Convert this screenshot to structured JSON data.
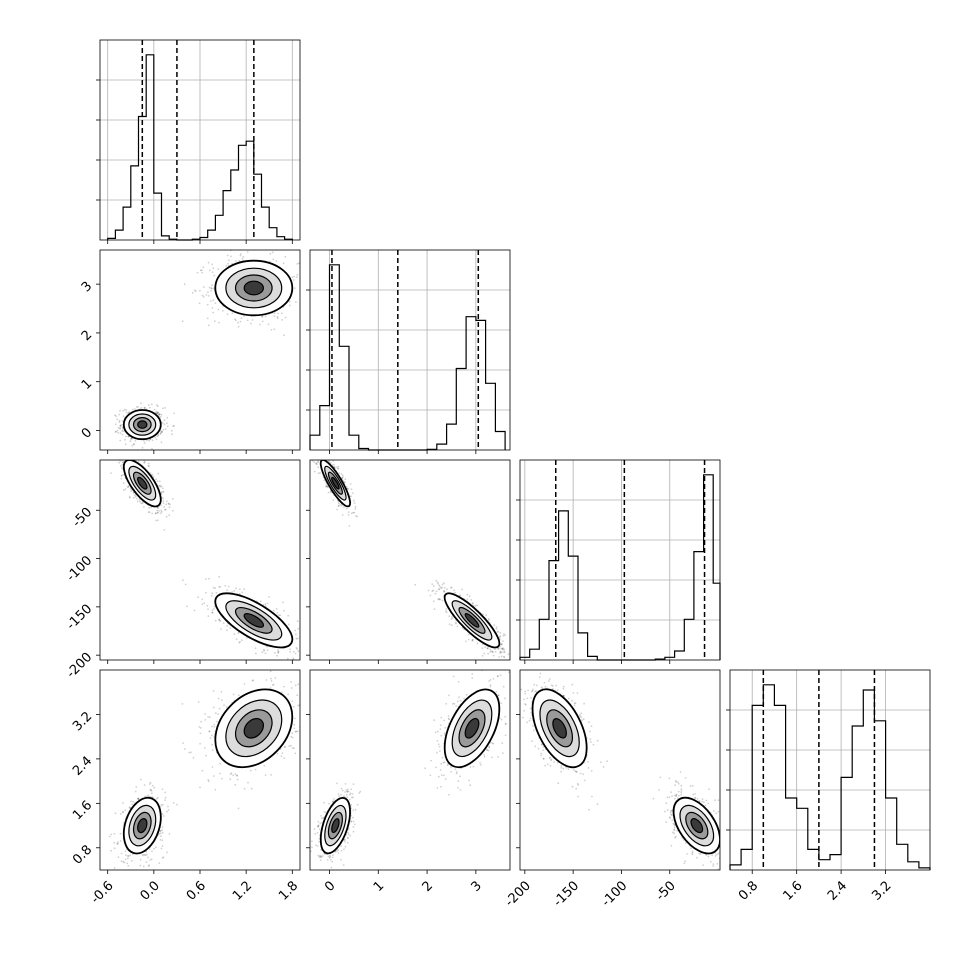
{
  "chart_data": {
    "type": "corner",
    "parameters": [
      {
        "range": [
          -0.7,
          1.9
        ],
        "ticks": [
          "-0.6",
          "0.0",
          "0.6",
          "1.2",
          "1.8"
        ],
        "tick_values": [
          -0.6,
          0.0,
          0.6,
          1.2,
          1.8
        ],
        "quantiles": [
          -0.15,
          0.3,
          1.3
        ],
        "hist_bin_edges": [
          -0.6,
          -0.5,
          -0.4,
          -0.3,
          -0.2,
          -0.1,
          0.0,
          0.1,
          0.2,
          0.3,
          0.4,
          0.5,
          0.6,
          0.7,
          0.8,
          0.9,
          1.0,
          1.1,
          1.2,
          1.3,
          1.4,
          1.5,
          1.6,
          1.7,
          1.8
        ],
        "hist_counts": [
          2,
          12,
          40,
          90,
          150,
          225,
          57,
          5,
          1,
          0,
          0,
          1,
          3,
          12,
          30,
          60,
          85,
          115,
          120,
          80,
          40,
          15,
          4,
          1
        ]
      },
      {
        "range": [
          -0.4,
          3.7
        ],
        "ticks": [
          "0",
          "1",
          "2",
          "3"
        ],
        "tick_values": [
          0,
          1,
          2,
          3
        ],
        "quantiles": [
          0.05,
          1.4,
          3.05
        ],
        "hist_bin_edges": [
          -0.4,
          -0.2,
          0.0,
          0.2,
          0.4,
          0.6,
          0.8,
          1.0,
          1.2,
          1.4,
          1.6,
          1.8,
          2.0,
          2.2,
          2.4,
          2.6,
          2.8,
          3.0,
          3.2,
          3.4,
          3.6
        ],
        "hist_counts": [
          20,
          60,
          250,
          140,
          20,
          2,
          0,
          0,
          0,
          0,
          0,
          0,
          1,
          8,
          35,
          110,
          180,
          175,
          90,
          25
        ]
      },
      {
        "range": [
          -205,
          2
        ],
        "ticks": [
          "-200",
          "-150",
          "-100",
          "-50"
        ],
        "tick_values": [
          -200,
          -150,
          -100,
          -50
        ],
        "quantiles": [
          -168,
          -97,
          -14
        ],
        "hist_bin_edges": [
          -205,
          -195,
          -185,
          -175,
          -165,
          -155,
          -145,
          -135,
          -125,
          -115,
          -105,
          -95,
          -85,
          -75,
          -65,
          -55,
          -45,
          -35,
          -25,
          -15,
          -5,
          2
        ],
        "hist_counts": [
          3,
          12,
          45,
          110,
          165,
          115,
          30,
          4,
          0,
          0,
          0,
          0,
          0,
          0,
          1,
          3,
          10,
          45,
          120,
          205,
          85
        ]
      },
      {
        "range": [
          0.4,
          4.0
        ],
        "ticks": [
          "0.8",
          "1.6",
          "2.4",
          "3.2"
        ],
        "tick_values": [
          0.8,
          1.6,
          2.4,
          3.2
        ],
        "quantiles": [
          1.0,
          2.0,
          3.0
        ],
        "hist_bin_edges": [
          0.4,
          0.6,
          0.8,
          1.0,
          1.2,
          1.4,
          1.6,
          1.8,
          2.0,
          2.2,
          2.4,
          2.6,
          2.8,
          3.0,
          3.2,
          3.4,
          3.6,
          3.8,
          4.0
        ],
        "hist_counts": [
          5,
          20,
          160,
          180,
          160,
          70,
          60,
          20,
          10,
          15,
          90,
          140,
          175,
          145,
          70,
          25,
          8,
          2
        ]
      }
    ],
    "modes": [
      {
        "center": [
          -0.15,
          0.12,
          -22,
          1.2
        ],
        "spread": [
          0.12,
          0.15,
          12,
          0.25
        ]
      },
      {
        "center": [
          1.3,
          2.92,
          -164,
          2.95
        ],
        "spread": [
          0.25,
          0.28,
          14,
          0.35
        ]
      }
    ],
    "mode_correlation": {
      "0-2": -0.7,
      "1-2": -0.85,
      "2-3": -0.5,
      "1-3": 0.5,
      "0-3": 0.3,
      "0-1": 0.0
    }
  }
}
